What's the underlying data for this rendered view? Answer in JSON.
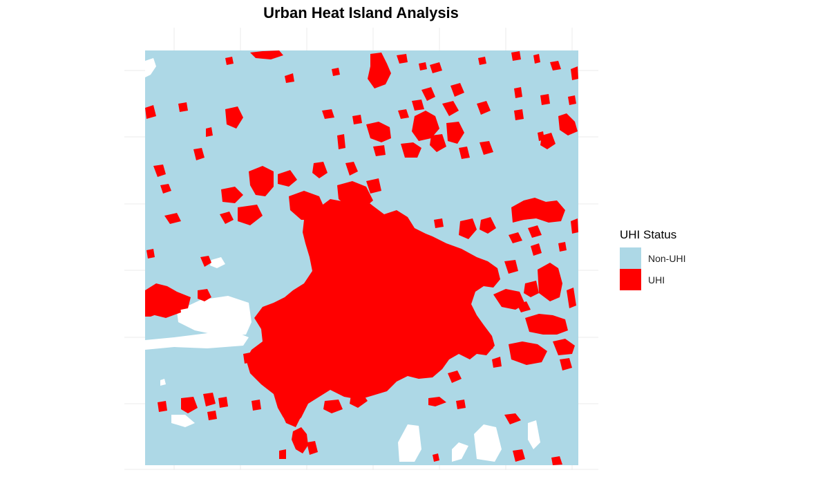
{
  "title": "Urban Heat Island Analysis",
  "legend": {
    "title": "UHI Status",
    "items": [
      {
        "label": "Non-UHI",
        "color": "#add8e6"
      },
      {
        "label": "UHI",
        "color": "#ff0000"
      }
    ]
  },
  "colors": {
    "background": "#ffffff",
    "grid": "#ebebeb",
    "no_data": "#ffffff"
  }
}
